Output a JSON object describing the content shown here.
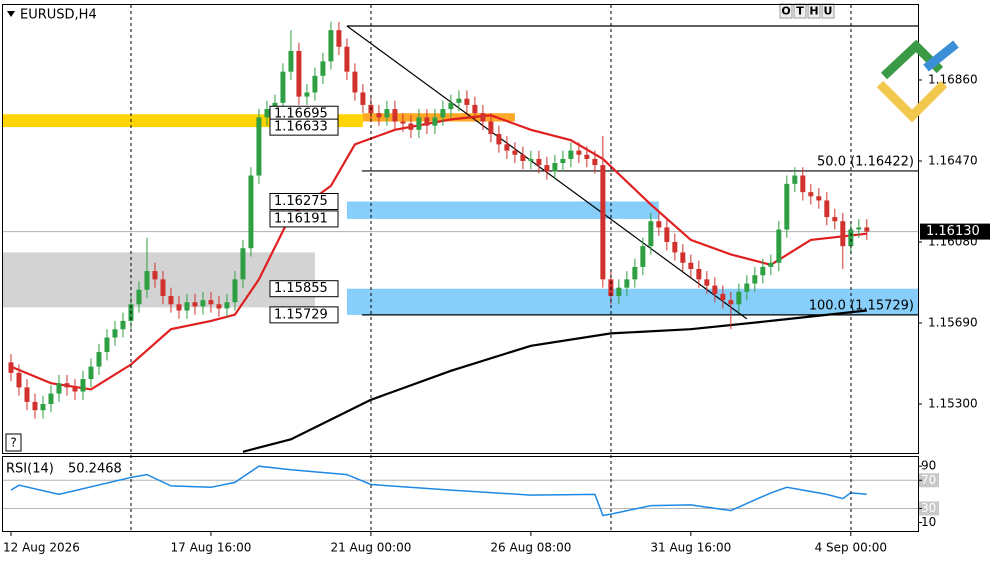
{
  "chart_data": {
    "type": "candlestick",
    "symbol": "EURUSD,H4",
    "help_button": "?",
    "toolbar": [
      "O",
      "T",
      "H",
      "U"
    ],
    "ylim": [
      1.15064,
      1.17221
    ],
    "yticks": [
      {
        "value": 1.1686,
        "label": "1.16860"
      },
      {
        "value": 1.1647,
        "label": "1.16470"
      },
      {
        "value": 1.1608,
        "label": "1.16080"
      },
      {
        "value": 1.1569,
        "label": "1.15690"
      },
      {
        "value": 1.153,
        "label": "1.15300"
      }
    ],
    "xlim": [
      -1,
      113.4
    ],
    "xticks": [
      {
        "value": 0,
        "label": "12 Aug 2026"
      },
      {
        "value": 25,
        "label": "17 Aug 16:00"
      },
      {
        "value": 45,
        "label": "21 Aug 00:00"
      },
      {
        "value": 65,
        "label": "26 Aug 08:00"
      },
      {
        "value": 85,
        "label": "31 Aug 16:00"
      },
      {
        "value": 105,
        "label": "4 Sep 00:00"
      }
    ],
    "up_color": "#2ea043",
    "down_color": "#d0312d",
    "ohlc": [
      [
        1.155,
        1.1554,
        1.1541,
        1.1545
      ],
      [
        1.1545,
        1.1549,
        1.1534,
        1.1538
      ],
      [
        1.1538,
        1.1542,
        1.1527,
        1.1531
      ],
      [
        1.1531,
        1.1535,
        1.1523,
        1.1527
      ],
      [
        1.1527,
        1.1534,
        1.1523,
        1.153
      ],
      [
        1.153,
        1.1539,
        1.1526,
        1.1535
      ],
      [
        1.1535,
        1.1544,
        1.1531,
        1.154
      ],
      [
        1.154,
        1.1544,
        1.1534,
        1.1538
      ],
      [
        1.1538,
        1.1542,
        1.1532,
        1.1536
      ],
      [
        1.1536,
        1.1546,
        1.1532,
        1.1542
      ],
      [
        1.1542,
        1.1552,
        1.1538,
        1.1548
      ],
      [
        1.1548,
        1.1559,
        1.1544,
        1.1555
      ],
      [
        1.1555,
        1.1566,
        1.1551,
        1.1562
      ],
      [
        1.1562,
        1.157,
        1.1558,
        1.1566
      ],
      [
        1.1566,
        1.1574,
        1.1562,
        1.157
      ],
      [
        1.157,
        1.1582,
        1.1566,
        1.1578
      ],
      [
        1.1578,
        1.1589,
        1.1574,
        1.1585
      ],
      [
        1.1585,
        1.161,
        1.1581,
        1.1594
      ],
      [
        1.1594,
        1.1598,
        1.1586,
        1.159
      ],
      [
        1.159,
        1.1594,
        1.1578,
        1.1582
      ],
      [
        1.1582,
        1.1586,
        1.1574,
        1.1578
      ],
      [
        1.1578,
        1.1582,
        1.1571,
        1.1575
      ],
      [
        1.1575,
        1.1583,
        1.1571,
        1.1579
      ],
      [
        1.1579,
        1.1583,
        1.1573,
        1.1577
      ],
      [
        1.1577,
        1.1584,
        1.1573,
        1.158
      ],
      [
        1.158,
        1.1584,
        1.1574,
        1.1578
      ],
      [
        1.1578,
        1.1582,
        1.1572,
        1.1576
      ],
      [
        1.1576,
        1.1583,
        1.1572,
        1.1579
      ],
      [
        1.1579,
        1.1594,
        1.1575,
        1.159
      ],
      [
        1.159,
        1.1609,
        1.1586,
        1.1605
      ],
      [
        1.1605,
        1.1644,
        1.1601,
        1.164
      ],
      [
        1.164,
        1.1672,
        1.1636,
        1.1668
      ],
      [
        1.1668,
        1.1676,
        1.1664,
        1.1672
      ],
      [
        1.1672,
        1.1679,
        1.1668,
        1.1675
      ],
      [
        1.1675,
        1.1694,
        1.1671,
        1.169
      ],
      [
        1.169,
        1.171,
        1.1686,
        1.17
      ],
      [
        1.17,
        1.1704,
        1.1674,
        1.1678
      ],
      [
        1.1678,
        1.1684,
        1.1674,
        1.168
      ],
      [
        1.168,
        1.1692,
        1.1676,
        1.1688
      ],
      [
        1.1688,
        1.1699,
        1.1684,
        1.1695
      ],
      [
        1.1695,
        1.1714,
        1.1691,
        1.171
      ],
      [
        1.171,
        1.1714,
        1.1698,
        1.1702
      ],
      [
        1.1702,
        1.1706,
        1.1686,
        1.169
      ],
      [
        1.169,
        1.1694,
        1.1676,
        1.168
      ],
      [
        1.168,
        1.1684,
        1.167,
        1.1674
      ],
      [
        1.1674,
        1.1678,
        1.1666,
        1.167
      ],
      [
        1.167,
        1.1674,
        1.1664,
        1.1668
      ],
      [
        1.1668,
        1.1676,
        1.1664,
        1.1672
      ],
      [
        1.1672,
        1.1676,
        1.1662,
        1.1666
      ],
      [
        1.1666,
        1.167,
        1.1661,
        1.1665
      ],
      [
        1.1665,
        1.1669,
        1.1658,
        1.1662
      ],
      [
        1.1662,
        1.1672,
        1.1658,
        1.1668
      ],
      [
        1.1668,
        1.1672,
        1.166,
        1.1664
      ],
      [
        1.1664,
        1.1672,
        1.166,
        1.1668
      ],
      [
        1.1668,
        1.1676,
        1.1664,
        1.1672
      ],
      [
        1.1672,
        1.1679,
        1.1668,
        1.1675
      ],
      [
        1.1675,
        1.1681,
        1.1671,
        1.1677
      ],
      [
        1.1677,
        1.1681,
        1.167,
        1.1674
      ],
      [
        1.1674,
        1.1678,
        1.1666,
        1.167
      ],
      [
        1.167,
        1.1674,
        1.1662,
        1.1666
      ],
      [
        1.1666,
        1.167,
        1.1656,
        1.166
      ],
      [
        1.166,
        1.1664,
        1.1651,
        1.1655
      ],
      [
        1.1655,
        1.1659,
        1.1648,
        1.1652
      ],
      [
        1.1652,
        1.1656,
        1.1646,
        1.165
      ],
      [
        1.165,
        1.1654,
        1.1643,
        1.1647
      ],
      [
        1.1647,
        1.1652,
        1.1643,
        1.1648
      ],
      [
        1.1648,
        1.1652,
        1.1641,
        1.1645
      ],
      [
        1.1645,
        1.1649,
        1.1638,
        1.1642
      ],
      [
        1.1642,
        1.165,
        1.1638,
        1.1646
      ],
      [
        1.1646,
        1.1652,
        1.1642,
        1.1648
      ],
      [
        1.1648,
        1.1656,
        1.1644,
        1.1652
      ],
      [
        1.1652,
        1.1656,
        1.1646,
        1.165
      ],
      [
        1.165,
        1.1654,
        1.1644,
        1.1648
      ],
      [
        1.1648,
        1.1652,
        1.1641,
        1.1645
      ],
      [
        1.1645,
        1.1659,
        1.1586,
        1.159
      ],
      [
        1.159,
        1.1594,
        1.1578,
        1.1582
      ],
      [
        1.1582,
        1.159,
        1.1578,
        1.1586
      ],
      [
        1.1586,
        1.1594,
        1.1582,
        1.159
      ],
      [
        1.159,
        1.16,
        1.1586,
        1.1596
      ],
      [
        1.1596,
        1.161,
        1.1592,
        1.1606
      ],
      [
        1.1606,
        1.1622,
        1.1602,
        1.1618
      ],
      [
        1.1618,
        1.1622,
        1.1611,
        1.1615
      ],
      [
        1.1615,
        1.1619,
        1.1604,
        1.1608
      ],
      [
        1.1608,
        1.1612,
        1.1599,
        1.1603
      ],
      [
        1.1603,
        1.1607,
        1.1594,
        1.1598
      ],
      [
        1.1598,
        1.1602,
        1.1591,
        1.1595
      ],
      [
        1.1595,
        1.1599,
        1.1586,
        1.159
      ],
      [
        1.159,
        1.1594,
        1.1583,
        1.1587
      ],
      [
        1.1587,
        1.1591,
        1.1579,
        1.1583
      ],
      [
        1.1583,
        1.1587,
        1.1576,
        1.158
      ],
      [
        1.158,
        1.1584,
        1.1566,
        1.1578
      ],
      [
        1.1578,
        1.1588,
        1.1574,
        1.1584
      ],
      [
        1.1584,
        1.1592,
        1.158,
        1.1588
      ],
      [
        1.1588,
        1.1596,
        1.1584,
        1.1592
      ],
      [
        1.1592,
        1.16,
        1.1588,
        1.1596
      ],
      [
        1.1596,
        1.1602,
        1.1592,
        1.1598
      ],
      [
        1.1598,
        1.1618,
        1.1594,
        1.1614
      ],
      [
        1.1614,
        1.164,
        1.161,
        1.1636
      ],
      [
        1.1636,
        1.1644,
        1.1632,
        1.164
      ],
      [
        1.164,
        1.1644,
        1.1628,
        1.1632
      ],
      [
        1.1632,
        1.1636,
        1.1626,
        1.163
      ],
      [
        1.163,
        1.1634,
        1.1624,
        1.1628
      ],
      [
        1.1628,
        1.1632,
        1.1616,
        1.162
      ],
      [
        1.162,
        1.1624,
        1.1614,
        1.1618
      ],
      [
        1.1618,
        1.1622,
        1.1595,
        1.1606
      ],
      [
        1.1606,
        1.1618,
        1.1602,
        1.1614
      ],
      [
        1.1614,
        1.1619,
        1.161,
        1.1615
      ],
      [
        1.1615,
        1.1619,
        1.1609,
        1.1613
      ]
    ],
    "series": [
      {
        "color": "#e02020",
        "x": [
          0,
          5,
          10,
          15,
          20,
          25,
          28,
          31,
          35,
          40,
          43,
          48,
          55,
          60,
          65,
          70,
          74,
          80,
          85,
          90,
          95,
          100,
          107
        ],
        "values": [
          1.1548,
          1.154,
          1.1537,
          1.1549,
          1.1566,
          1.157,
          1.1573,
          1.159,
          1.1621,
          1.1635,
          1.1655,
          1.1662,
          1.1667,
          1.1669,
          1.1662,
          1.1657,
          1.1648,
          1.1626,
          1.1609,
          1.1602,
          1.1597,
          1.1609,
          1.1612
        ]
      },
      {
        "color": "#000000",
        "x": [
          29,
          35,
          45,
          55,
          65,
          75,
          85,
          95,
          107
        ],
        "values": [
          1.1507,
          1.1513,
          1.1532,
          1.1546,
          1.1558,
          1.1564,
          1.1566,
          1.157,
          1.1575
        ]
      }
    ],
    "current_price": {
      "value": 1.1613,
      "label": "1.16130"
    },
    "zones": [
      {
        "low": 1.16633,
        "high": 1.16695,
        "color": "#ffd400",
        "x": [
          -1,
          44
        ],
        "labeled": true
      },
      {
        "low": 1.1666,
        "high": 1.167,
        "color": "#ffa726",
        "x": [
          44,
          63
        ],
        "labeled": false
      },
      {
        "low": 1.15765,
        "high": 1.1603,
        "color": "#d3d3d3",
        "x": [
          -1,
          38
        ],
        "labeled": false
      },
      {
        "low": 1.16191,
        "high": 1.16275,
        "color": "#87cefa",
        "x": [
          42,
          81
        ],
        "labeled": true
      },
      {
        "low": 1.15729,
        "high": 1.15855,
        "color": "#87cefa",
        "x": [
          42,
          113.4
        ],
        "labeled": true
      }
    ],
    "fibo": {
      "color": "#000000",
      "x": [
        42,
        113.4
      ],
      "levels": [
        {
          "value": 1.1712
        },
        {
          "value": 1.16422,
          "label": "50.0 (1.16422)"
        },
        {
          "value": 1.15729,
          "label": "100.0 (1.15729)"
        }
      ]
    },
    "trendline": {
      "color": "#000000",
      "x": [
        42,
        92
      ],
      "values": [
        1.1712,
        1.1571
      ]
    },
    "rsi": {
      "name": "RSI(14)",
      "color": "#1e88e5",
      "ylim": [
        -2,
        103
      ],
      "yticks": [
        90,
        70,
        30,
        10
      ],
      "x": [
        0,
        1,
        6,
        15,
        17,
        20,
        25,
        28,
        31,
        35,
        42,
        45,
        55,
        65,
        73,
        74,
        75,
        80,
        85,
        90,
        95,
        97,
        100,
        102,
        104,
        105,
        107
      ],
      "values": [
        56,
        63,
        50,
        74,
        78,
        62,
        60,
        67,
        90,
        85,
        78,
        64,
        56,
        49,
        50,
        20,
        22,
        34,
        35,
        27,
        52,
        60,
        54,
        50,
        44,
        52,
        50.2468
      ]
    }
  }
}
